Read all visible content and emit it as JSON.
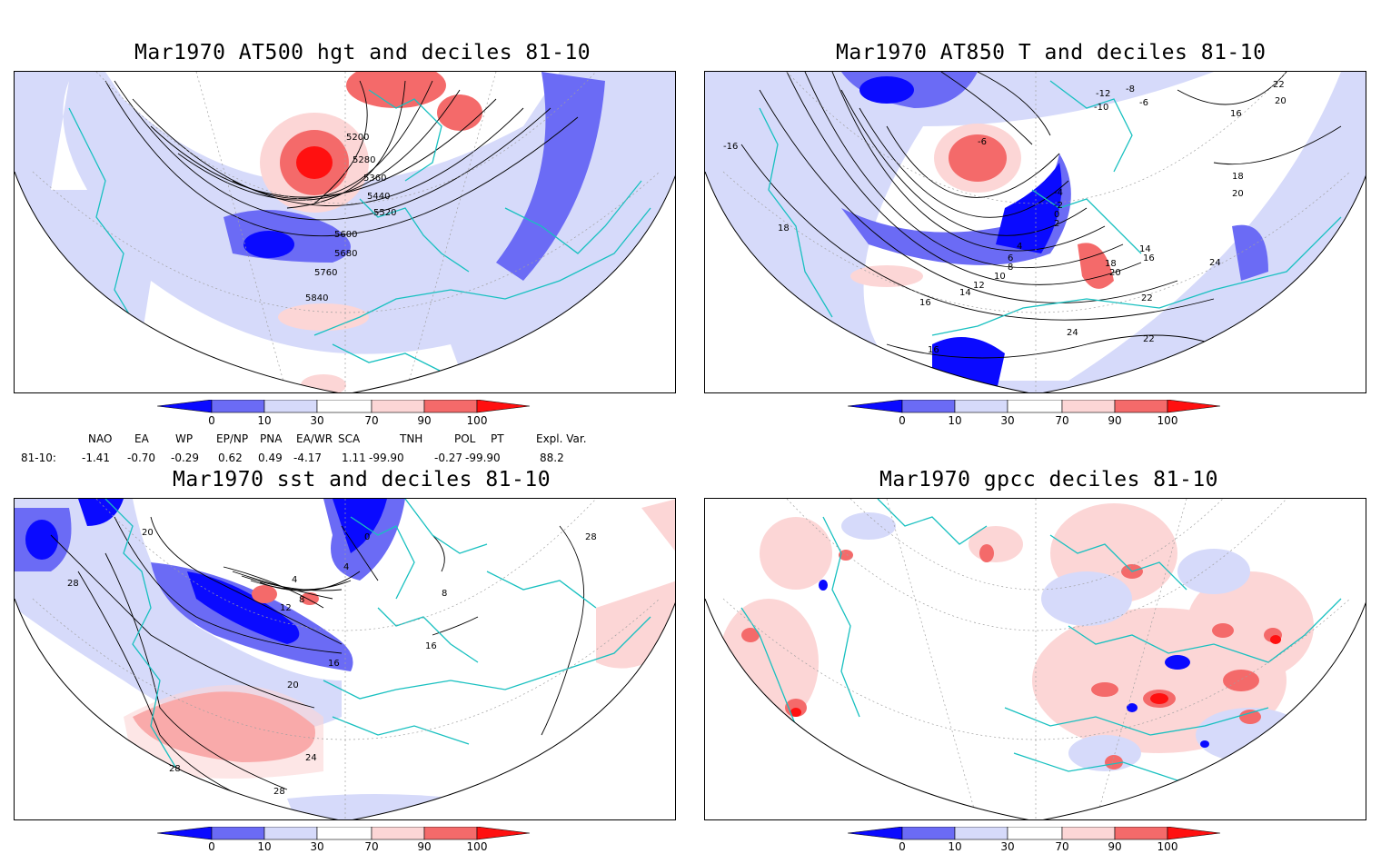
{
  "panels": [
    {
      "title": "Mar1970 AT500 hgt and deciles 81-10",
      "contour_labels": [
        "5200",
        "5280",
        "5360",
        "5440",
        "5520",
        "5600",
        "5680",
        "5760",
        "5840"
      ]
    },
    {
      "title": "Mar1970 AT850 T and deciles 81-10",
      "contour_labels": [
        "-12",
        "-10",
        "-8",
        "-6",
        "-6",
        "-4",
        "-2",
        "0",
        "2",
        "4",
        "6",
        "8",
        "10",
        "12",
        "14",
        "14",
        "16",
        "16",
        "16",
        "16",
        "18",
        "18",
        "18",
        "20",
        "20",
        "20",
        "22",
        "22",
        "22",
        "24",
        "24",
        "-16"
      ]
    },
    {
      "title": "Mar1970 sst and deciles 81-10",
      "contour_labels": [
        "0",
        "4",
        "4",
        "8",
        "8",
        "12",
        "16",
        "16",
        "20",
        "20",
        "24",
        "28",
        "28",
        "28",
        "28"
      ]
    },
    {
      "title": "Mar1970 gpcc deciles 81-10",
      "contour_labels": []
    }
  ],
  "colorbar": {
    "tick_labels": [
      "0",
      "10",
      "30",
      "70",
      "90",
      "100"
    ],
    "colors": [
      "#0a0aff",
      "#6b6bf5",
      "#d6dafa",
      "#ffffff",
      "#fcd6d6",
      "#f46a6a",
      "#ff1010"
    ]
  },
  "teleconnections": {
    "headers": [
      "NAO",
      "EA",
      "WP",
      "EP/NP",
      "PNA",
      "EA/WR",
      "SCA",
      "TNH",
      "POL",
      "PT",
      "Expl. Var."
    ],
    "row_label": "81-10:",
    "values": [
      "-1.41",
      "-0.70",
      "-0.29",
      "0.62",
      "0.49",
      "-4.17",
      "1.11",
      "-99.90",
      "-0.27",
      "-99.90",
      "88.2"
    ]
  },
  "colors": {
    "coastline": "#18c0c0",
    "contour": "#000000",
    "grid": "#a0a0a0"
  }
}
